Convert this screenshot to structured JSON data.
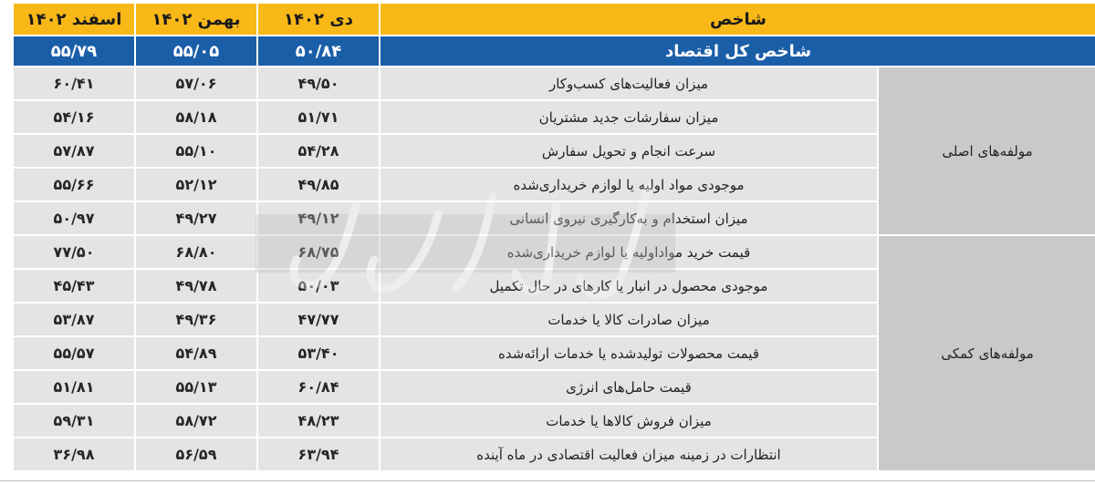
{
  "header": {
    "indicator": "شاخص",
    "col_dey": "دی ۱۴۰۲",
    "col_bahman": "بهمن ۱۴۰۲",
    "col_esfand": "اسفند ۱۴۰۲"
  },
  "total": {
    "label": "شاخص کل اقتصاد",
    "dey": "۵۰/۸۴",
    "bahman": "۵۵/۰۵",
    "esfand": "۵۵/۷۹"
  },
  "groups": {
    "main": "مولفه‌های اصلی",
    "aux": "مولفه‌های کمکی"
  },
  "rows": [
    {
      "name": "میزان فعالیت‌های کسب‌وکار",
      "dey": "۴۹/۵۰",
      "bahman": "۵۷/۰۶",
      "esfand": "۶۰/۴۱"
    },
    {
      "name": "میزان سفارشات جدید مشتریان",
      "dey": "۵۱/۷۱",
      "bahman": "۵۸/۱۸",
      "esfand": "۵۴/۱۶"
    },
    {
      "name": "سرعت انجام و تحویل سفارش",
      "dey": "۵۴/۲۸",
      "bahman": "۵۵/۱۰",
      "esfand": "۵۷/۸۷"
    },
    {
      "name": "موجودی مواد اولیه یا لوازم خریداری‌شده",
      "dey": "۴۹/۸۵",
      "bahman": "۵۲/۱۲",
      "esfand": "۵۵/۶۶"
    },
    {
      "name": "میزان استخدام و به‌کارگیری نیروی انسانی",
      "dey": "۴۹/۱۲",
      "bahman": "۴۹/۲۷",
      "esfand": "۵۰/۹۷"
    },
    {
      "name": "قیمت خرید مواداولیه یا لوازم خریداری‌شده",
      "dey": "۶۸/۷۵",
      "bahman": "۶۸/۸۰",
      "esfand": "۷۷/۵۰"
    },
    {
      "name": "موجودی محصول در انبار یا کارهای در حال تکمیل",
      "dey": "۵۰/۰۳",
      "bahman": "۴۹/۷۸",
      "esfand": "۴۵/۴۳"
    },
    {
      "name": "میزان صادرات کالا یا خدمات",
      "dey": "۴۷/۷۷",
      "bahman": "۴۹/۳۶",
      "esfand": "۵۳/۸۷"
    },
    {
      "name": "قیمت محصولات تولیدشده یا خدمات ارائه‌شده",
      "dey": "۵۳/۴۰",
      "bahman": "۵۴/۸۹",
      "esfand": "۵۵/۵۷"
    },
    {
      "name": "قیمت حامل‌های انرژی",
      "dey": "۶۰/۸۴",
      "bahman": "۵۵/۱۳",
      "esfand": "۵۱/۸۱"
    },
    {
      "name": "میزان فروش کالاها یا خدمات",
      "dey": "۴۸/۲۳",
      "bahman": "۵۸/۷۲",
      "esfand": "۵۹/۳۱"
    },
    {
      "name": "انتظارات در زمینه میزان فعالیت اقتصادی در ماه آینده",
      "dey": "۶۳/۹۴",
      "bahman": "۵۶/۵۹",
      "esfand": "۳۶/۹۸"
    }
  ],
  "watermark": "دنیای اقتصاد",
  "colors": {
    "header_bg": "#f7b818",
    "total_bg": "#1b5ea8",
    "row_bg": "#e4e4e4",
    "group_bg": "#c9c9c9"
  }
}
